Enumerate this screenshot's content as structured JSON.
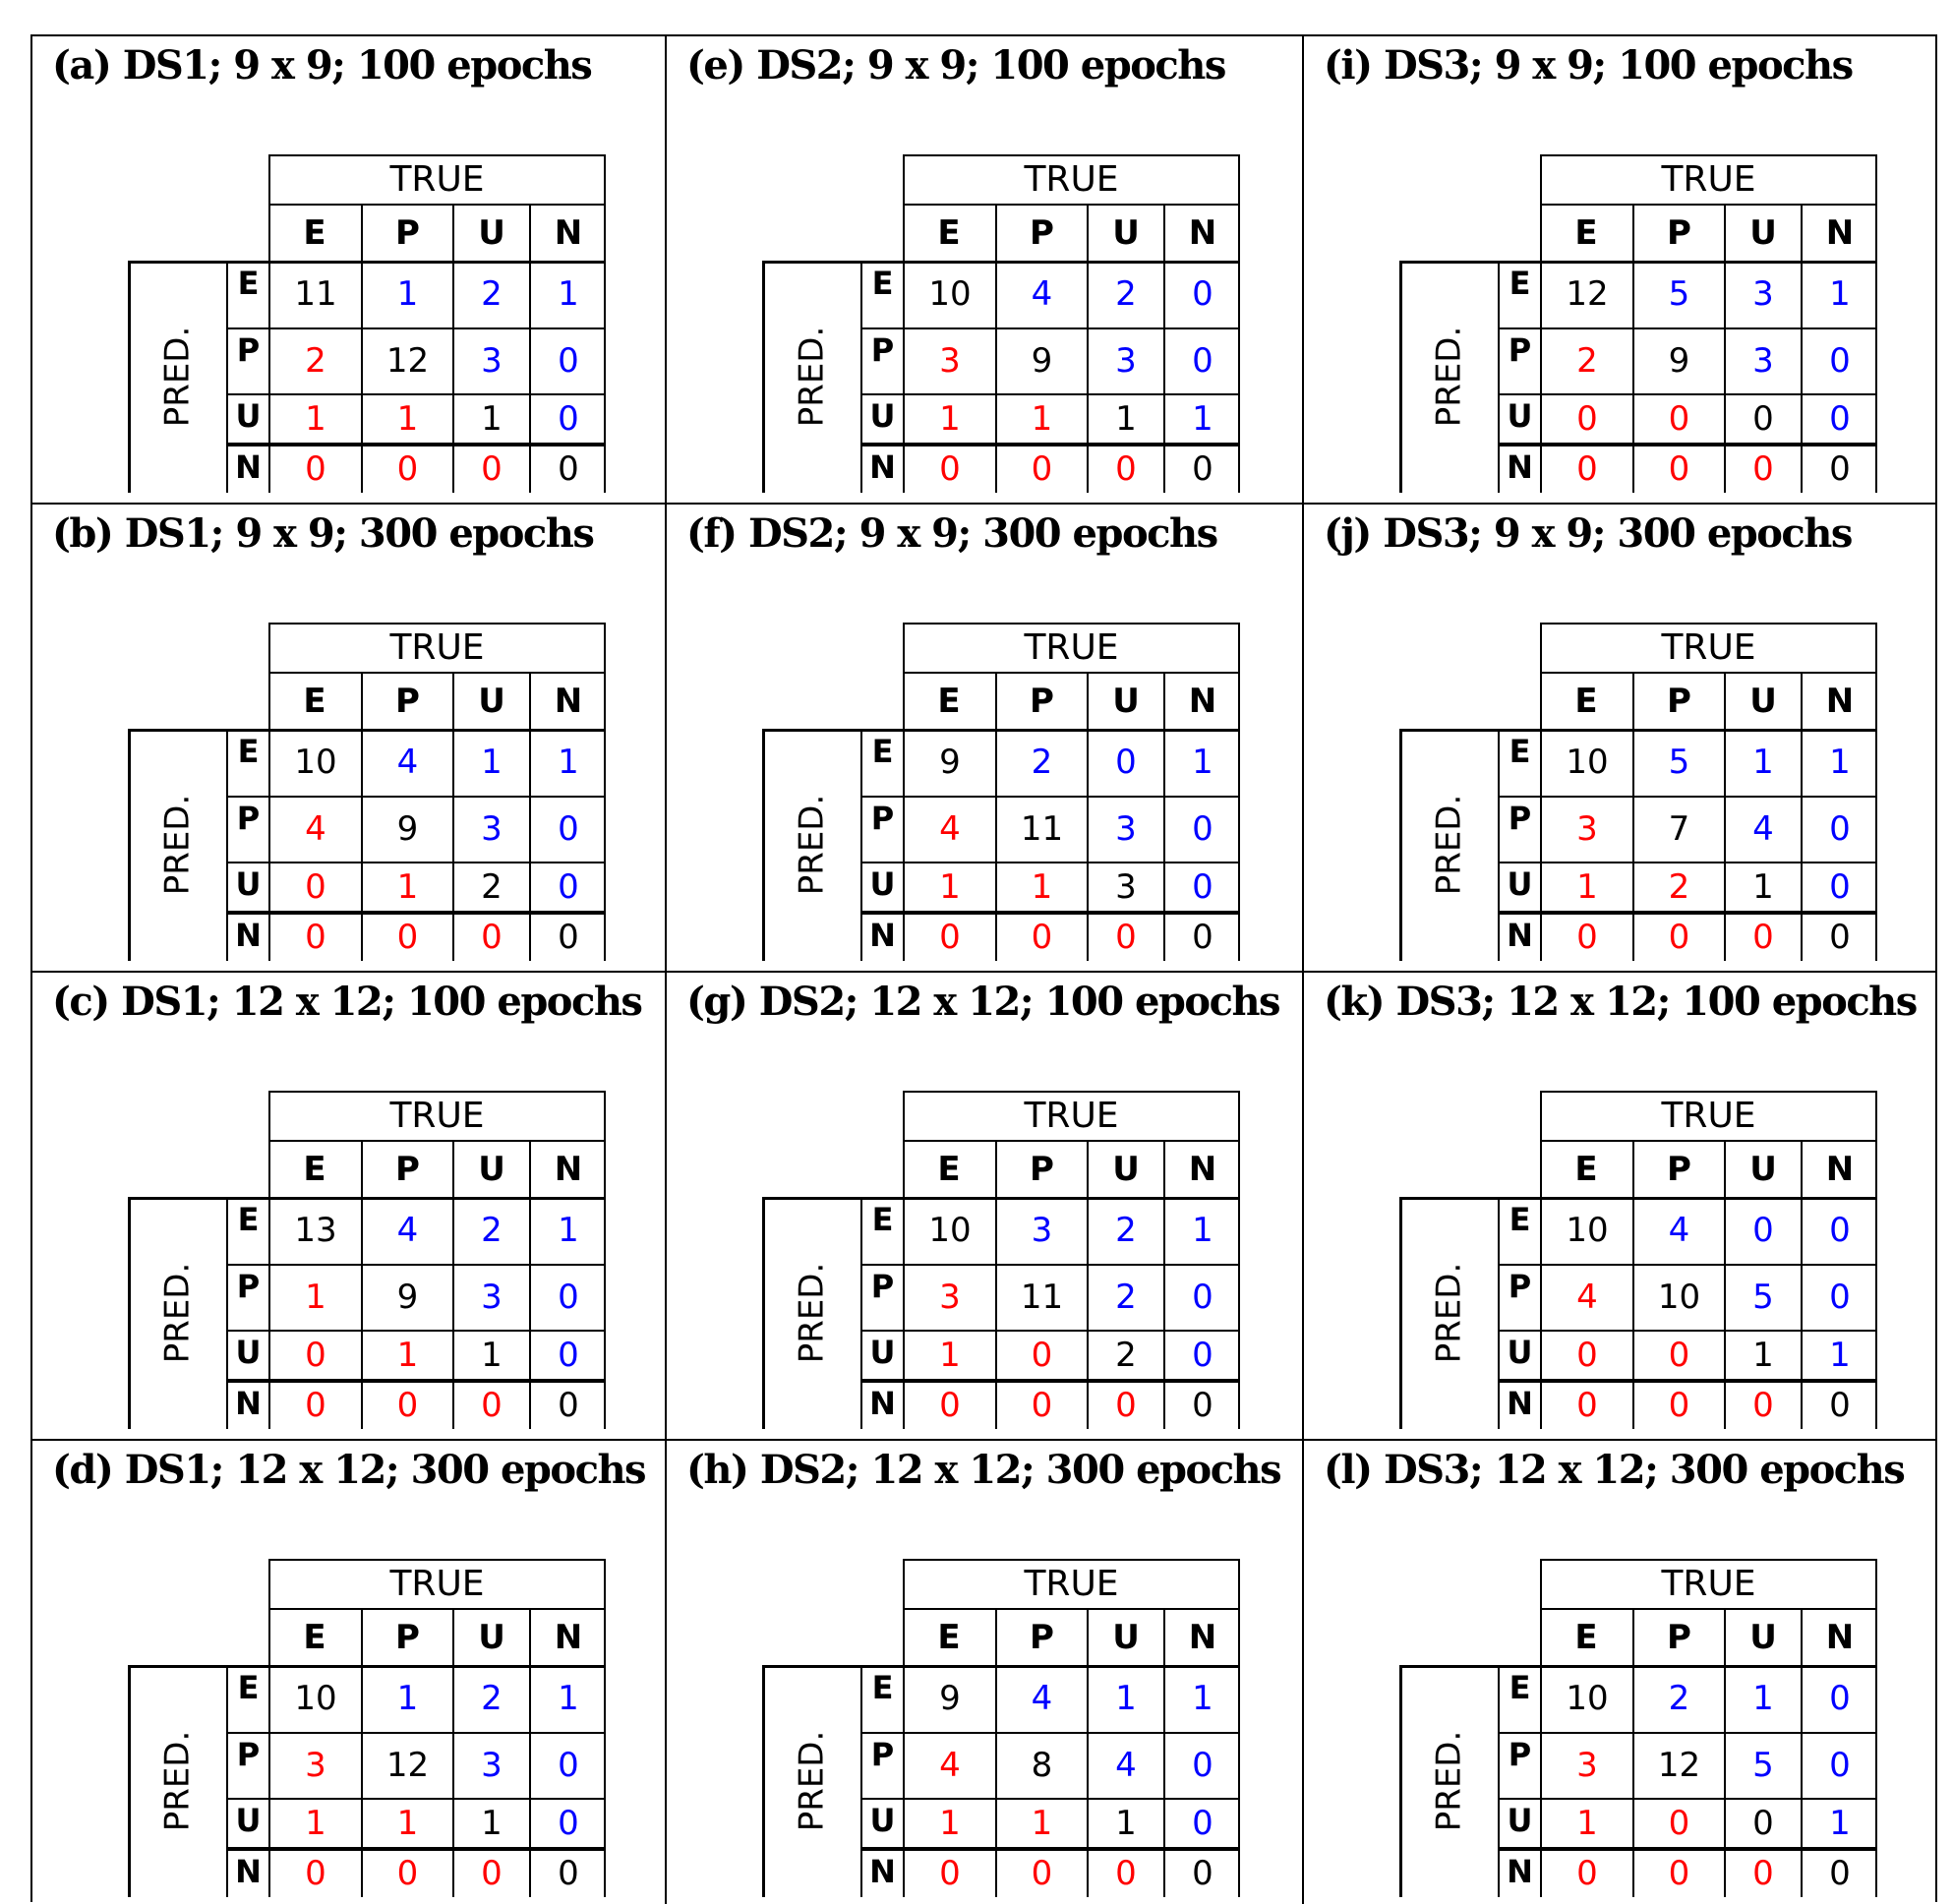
{
  "colors": {
    "correct": "#000000",
    "under": "#ff0000",
    "over": "#0000ff"
  },
  "true_label": "TRUE",
  "pred_label": "PRED.",
  "classes": [
    "E",
    "P",
    "U",
    "N"
  ],
  "panels": [
    {
      "title": "(a) DS1; 9 x 9; 100 epochs",
      "matrix": [
        [
          11,
          1,
          2,
          1
        ],
        [
          2,
          12,
          3,
          0
        ],
        [
          1,
          1,
          1,
          0
        ],
        [
          0,
          0,
          0,
          0
        ]
      ]
    },
    {
      "title": "(e) DS2; 9 x 9; 100 epochs",
      "matrix": [
        [
          10,
          4,
          2,
          0
        ],
        [
          3,
          9,
          3,
          0
        ],
        [
          1,
          1,
          1,
          1
        ],
        [
          0,
          0,
          0,
          0
        ]
      ]
    },
    {
      "title": "(i) DS3; 9 x 9; 100 epochs",
      "matrix": [
        [
          12,
          5,
          3,
          1
        ],
        [
          2,
          9,
          3,
          0
        ],
        [
          0,
          0,
          0,
          0
        ],
        [
          0,
          0,
          0,
          0
        ]
      ]
    },
    {
      "title": "(b) DS1; 9 x 9; 300 epochs",
      "matrix": [
        [
          10,
          4,
          1,
          1
        ],
        [
          4,
          9,
          3,
          0
        ],
        [
          0,
          1,
          2,
          0
        ],
        [
          0,
          0,
          0,
          0
        ]
      ]
    },
    {
      "title": "(f) DS2; 9 x 9; 300 epochs",
      "matrix": [
        [
          9,
          2,
          0,
          1
        ],
        [
          4,
          11,
          3,
          0
        ],
        [
          1,
          1,
          3,
          0
        ],
        [
          0,
          0,
          0,
          0
        ]
      ]
    },
    {
      "title": "(j) DS3; 9 x 9; 300 epochs",
      "matrix": [
        [
          10,
          5,
          1,
          1
        ],
        [
          3,
          7,
          4,
          0
        ],
        [
          1,
          2,
          1,
          0
        ],
        [
          0,
          0,
          0,
          0
        ]
      ]
    },
    {
      "title": "(c) DS1; 12 x 12; 100 epochs",
      "matrix": [
        [
          13,
          4,
          2,
          1
        ],
        [
          1,
          9,
          3,
          0
        ],
        [
          0,
          1,
          1,
          0
        ],
        [
          0,
          0,
          0,
          0
        ]
      ]
    },
    {
      "title": "(g) DS2; 12 x 12; 100 epochs",
      "matrix": [
        [
          10,
          3,
          2,
          1
        ],
        [
          3,
          11,
          2,
          0
        ],
        [
          1,
          0,
          2,
          0
        ],
        [
          0,
          0,
          0,
          0
        ]
      ]
    },
    {
      "title": "(k) DS3; 12 x 12; 100 epochs",
      "matrix": [
        [
          10,
          4,
          0,
          0
        ],
        [
          4,
          10,
          5,
          0
        ],
        [
          0,
          0,
          1,
          1
        ],
        [
          0,
          0,
          0,
          0
        ]
      ]
    },
    {
      "title": "(d) DS1; 12 x 12; 300 epochs",
      "matrix": [
        [
          10,
          1,
          2,
          1
        ],
        [
          3,
          12,
          3,
          0
        ],
        [
          1,
          1,
          1,
          0
        ],
        [
          0,
          0,
          0,
          0
        ]
      ]
    },
    {
      "title": "(h) DS2; 12 x 12; 300 epochs",
      "matrix": [
        [
          9,
          4,
          1,
          1
        ],
        [
          4,
          8,
          4,
          0
        ],
        [
          1,
          1,
          1,
          0
        ],
        [
          0,
          0,
          0,
          0
        ]
      ]
    },
    {
      "title": "(l) DS3; 12 x 12; 300 epochs",
      "matrix": [
        [
          10,
          2,
          1,
          0
        ],
        [
          3,
          12,
          5,
          0
        ],
        [
          1,
          0,
          0,
          1
        ],
        [
          0,
          0,
          0,
          0
        ]
      ]
    }
  ]
}
